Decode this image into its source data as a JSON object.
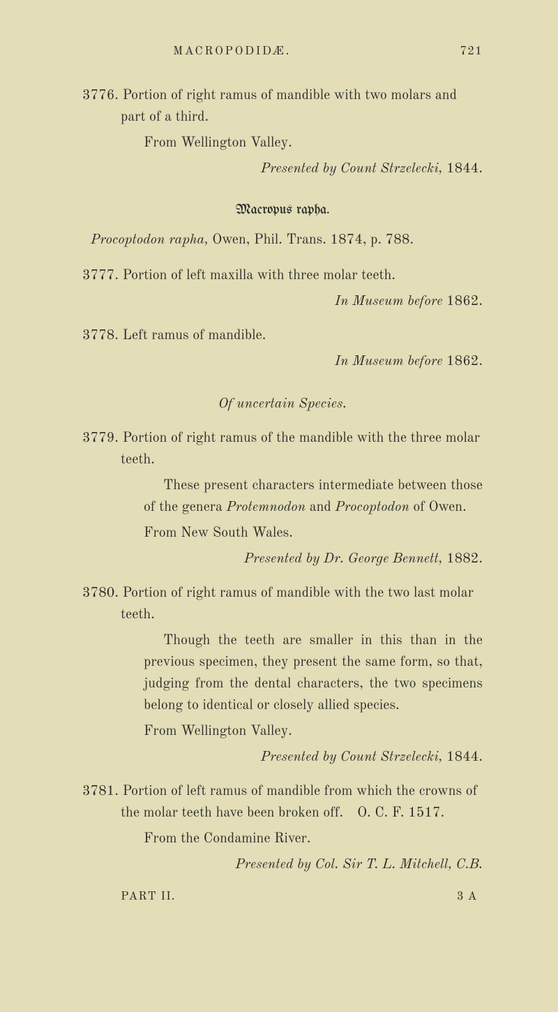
{
  "runningTitle": "MACROPODIDÆ.",
  "pageNumber": "721",
  "entries": {
    "e3776": {
      "num": "3776.",
      "text": "Portion of right ramus of mandible with two molars and part of a third.",
      "from": "From Wellington Valley.",
      "credit_pref": "Presented by Count Strzelecki, ",
      "credit_year": "1844."
    },
    "speciesHead": "Macropus rapha.",
    "speciesLine_a": "Procoptodon rapha,",
    "speciesLine_b": " Owen, Phil. Trans. 1874, p. 788.",
    "e3777": {
      "num": "3777.",
      "text": "Portion of left maxilla with three molar teeth.",
      "credit_pref": "In Museum before ",
      "credit_year": "1862."
    },
    "e3778": {
      "num": "3778.",
      "text": "Left ramus of mandible.",
      "credit_pref": "In Museum before ",
      "credit_year": "1862."
    },
    "uncertainHead": "Of uncertain Species.",
    "e3779": {
      "num": "3779.",
      "text": "Portion of right ramus of the mandible with the three molar teeth.",
      "body_a": "These present characters intermediate between those of the genera ",
      "body_b": "Protemnodon",
      "body_c": " and ",
      "body_d": "Procoptodon",
      "body_e": " of Owen.",
      "from": "From New South Wales.",
      "credit_pref": "Presented by Dr. George Bennett, ",
      "credit_year": "1882."
    },
    "e3780": {
      "num": "3780.",
      "text": "Portion of right ramus of mandible with the two last molar teeth.",
      "body": "Though the teeth are smaller in this than in the previous specimen, they present the same form, so that, judging from the dental characters, the two specimens belong to identical or closely allied species.",
      "from": "From Wellington Valley.",
      "credit_pref": "Presented by Count Strzelecki, ",
      "credit_year": "1844."
    },
    "e3781": {
      "num": "3781.",
      "text": "Portion of left ramus of mandible from which the crowns of the molar teeth have been broken off. O. C. F. 1517.",
      "from": "From the Condamine River.",
      "credit_pref": "Presented by Col. Sir T. L. Mitchell, C.B."
    },
    "footerLeft": "PART II.",
    "footerRight": "3 A"
  }
}
